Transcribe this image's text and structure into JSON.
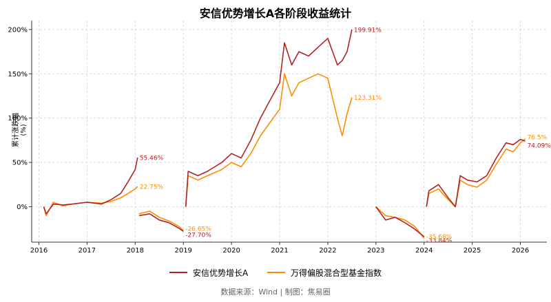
{
  "title": "安信优势增长A各阶段收益统计",
  "source_note": "数据来源：Wind | 制图：焦易圈",
  "colors": {
    "fund": "#B22222",
    "index": "#FF8C00",
    "grid": "#cfcfcf",
    "axis": "#333333"
  },
  "chart_data": {
    "type": "line",
    "title": "安信优势增长A各阶段收益统计",
    "xlabel": "",
    "ylabel": "累计涨跌幅 (%)",
    "ylim": [
      -40,
      210
    ],
    "xlim": [
      2015.85,
      2026.55
    ],
    "grid": true,
    "legend_position": "bottom",
    "x_ticks": [
      "2016",
      "2017",
      "2018",
      "2019",
      "2020",
      "2021",
      "2022",
      "2023",
      "2024",
      "2025",
      "2026"
    ],
    "y_ticks": [
      "0%",
      "50%",
      "100%",
      "150%",
      "200%"
    ],
    "series": [
      {
        "name": "安信优势增长A",
        "segments": [
          {
            "x": [
              2016.1,
              2016.15,
              2016.3,
              2016.5,
              2016.7,
              2017.0,
              2017.3,
              2017.5,
              2017.7,
              2017.85,
              2018.0,
              2018.05
            ],
            "y": [
              0,
              -8,
              3,
              2,
              3,
              5,
              3,
              8,
              15,
              28,
              42,
              55.46
            ],
            "end_label": "55.46%"
          },
          {
            "x": [
              2018.08,
              2018.3,
              2018.5,
              2018.7,
              2018.9,
              2019.0
            ],
            "y": [
              -10,
              -8,
              -15,
              -18,
              -24,
              -27.7
            ],
            "end_label": "-27.70%"
          },
          {
            "x": [
              2019.05,
              2019.1,
              2019.3,
              2019.5,
              2019.8,
              2020.0,
              2020.2,
              2020.4,
              2020.6,
              2020.8,
              2021.0,
              2021.1,
              2021.25,
              2021.4,
              2021.6,
              2021.8,
              2022.0,
              2022.2,
              2022.3,
              2022.4,
              2022.5
            ],
            "y": [
              0,
              40,
              35,
              40,
              50,
              60,
              55,
              75,
              100,
              120,
              140,
              185,
              160,
              175,
              170,
              180,
              190,
              160,
              165,
              175,
              199.91
            ],
            "end_label": "199.91%"
          },
          {
            "x": [
              2023.0,
              2023.2,
              2023.4,
              2023.6,
              2023.8,
              2024.0
            ],
            "y": [
              0,
              -15,
              -12,
              -18,
              -25,
              -33.84
            ],
            "end_label": "-33.84%"
          },
          {
            "x": [
              2024.05,
              2024.1,
              2024.3,
              2024.5,
              2024.65,
              2024.75,
              2024.9,
              2025.1,
              2025.3,
              2025.5,
              2025.7,
              2025.85,
              2026.0,
              2026.1
            ],
            "y": [
              0,
              18,
              25,
              10,
              0,
              35,
              30,
              28,
              35,
              55,
              72,
              70,
              76,
              74.09
            ],
            "end_label": "74.09%"
          }
        ]
      },
      {
        "name": "万得偏股混合型基金指数",
        "segments": [
          {
            "x": [
              2016.1,
              2016.15,
              2016.3,
              2016.5,
              2016.7,
              2017.0,
              2017.3,
              2017.5,
              2017.7,
              2017.85,
              2018.0,
              2018.05
            ],
            "y": [
              0,
              -10,
              5,
              1,
              3,
              5,
              4,
              6,
              10,
              15,
              20,
              22.75
            ],
            "end_label": "22.75%"
          },
          {
            "x": [
              2018.08,
              2018.3,
              2018.5,
              2018.7,
              2018.9,
              2019.0
            ],
            "y": [
              -8,
              -5,
              -12,
              -16,
              -22,
              -26.65
            ],
            "end_label": "-26.65%"
          },
          {
            "x": [
              2019.05,
              2019.1,
              2019.3,
              2019.5,
              2019.8,
              2020.0,
              2020.2,
              2020.4,
              2020.6,
              2020.8,
              2021.0,
              2021.1,
              2021.25,
              2021.4,
              2021.6,
              2021.8,
              2022.0,
              2022.2,
              2022.3,
              2022.4,
              2022.5
            ],
            "y": [
              0,
              35,
              30,
              35,
              42,
              50,
              45,
              60,
              80,
              95,
              110,
              150,
              125,
              140,
              145,
              150,
              145,
              100,
              80,
              105,
              123.31
            ],
            "end_label": "123.31%"
          },
          {
            "x": [
              2023.0,
              2023.2,
              2023.4,
              2023.6,
              2023.8,
              2024.0
            ],
            "y": [
              0,
              -10,
              -12,
              -15,
              -22,
              -35.68
            ],
            "end_label": "-35.68%"
          },
          {
            "x": [
              2024.05,
              2024.1,
              2024.3,
              2024.5,
              2024.65,
              2024.75,
              2024.9,
              2025.1,
              2025.3,
              2025.5,
              2025.7,
              2025.85,
              2026.0,
              2026.1
            ],
            "y": [
              0,
              15,
              20,
              8,
              0,
              30,
              25,
              22,
              30,
              48,
              65,
              62,
              72,
              76.5
            ],
            "end_label": "76.5%"
          }
        ]
      }
    ]
  }
}
